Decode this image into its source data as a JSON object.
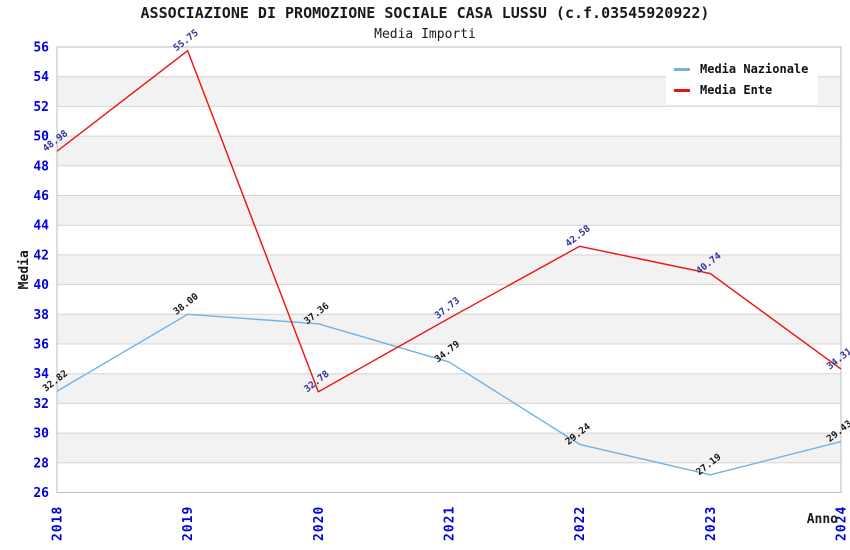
{
  "chart_data": {
    "type": "line",
    "title": "ASSOCIAZIONE DI PROMOZIONE SOCIALE CASA LUSSU (c.f.03545920922)",
    "subtitle": "Media Importi",
    "xlabel": "Anno",
    "ylabel": "Media",
    "categories": [
      "2018",
      "2019",
      "2020",
      "2021",
      "2022",
      "2023",
      "2024"
    ],
    "ylim": [
      26,
      56
    ],
    "ytick_step": 2,
    "grid": "horizontal gridlines with alternating band fill",
    "legend_position": "top-right",
    "series": [
      {
        "name": "Media Nazionale",
        "color": "#74b2e2",
        "label_color": "#1a1a1a",
        "values": [
          32.82,
          38.0,
          37.36,
          34.79,
          29.24,
          27.19,
          29.43
        ]
      },
      {
        "name": "Media Ente",
        "color": "#ee1111",
        "label_color": "#333399",
        "values": [
          48.98,
          55.75,
          32.78,
          37.73,
          42.58,
          40.74,
          34.31
        ]
      }
    ],
    "colors": {
      "tick_label": "#0000e0",
      "band_fill": "#f2f2f2",
      "gridline": "#d4d4d4",
      "frame": "#bdbdbd",
      "axis_title": "#1a1a1a"
    }
  }
}
